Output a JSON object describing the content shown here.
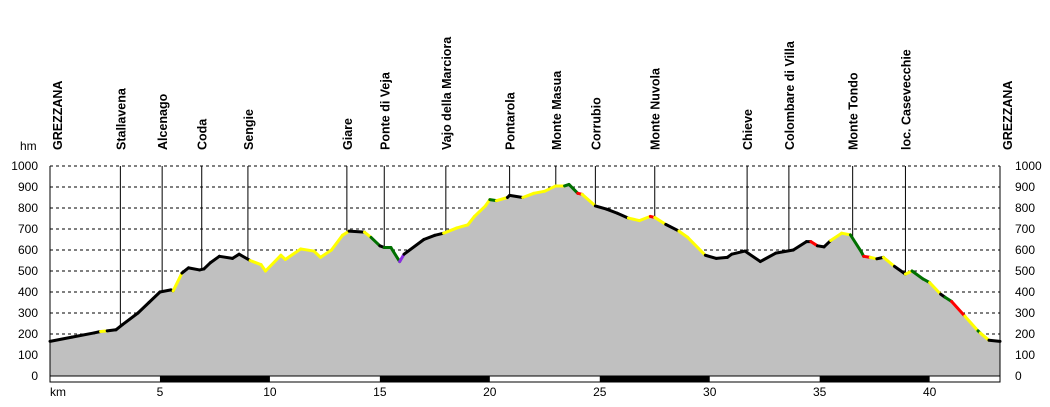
{
  "chart_data": {
    "type": "area",
    "title": "",
    "xlabel": "km",
    "ylabel": "hm",
    "xlim": [
      0,
      43.2
    ],
    "ylim": [
      0,
      1000
    ],
    "xticks": [
      5,
      10,
      15,
      20,
      25,
      30,
      35,
      40
    ],
    "yticks": [
      0,
      100,
      200,
      300,
      400,
      500,
      600,
      700,
      800,
      900,
      1000
    ],
    "grid": true,
    "colors": {
      "k": "#000000",
      "y": "#ffff00",
      "g": "#007000",
      "r": "#ff0000",
      "p": "#8a2be2",
      "fill": "#c0c0c0"
    },
    "waypoints": [
      {
        "name": "GREZZANA",
        "km": 0
      },
      {
        "name": "Stallavena",
        "km": 3.2
      },
      {
        "name": "Alcenago",
        "km": 5.1
      },
      {
        "name": "Coda",
        "km": 6.9
      },
      {
        "name": "Sengie",
        "km": 9.0
      },
      {
        "name": "Giare",
        "km": 13.5
      },
      {
        "name": "Ponte di Veja",
        "km": 15.2
      },
      {
        "name": "Vajo della Marciora",
        "km": 18.0
      },
      {
        "name": "Pontarola",
        "km": 20.9
      },
      {
        "name": "Monte Masua",
        "km": 23.0
      },
      {
        "name": "Corrubio",
        "km": 24.8
      },
      {
        "name": "Monte Nuvola",
        "km": 27.5
      },
      {
        "name": "Chieve",
        "km": 31.7
      },
      {
        "name": "Colombare di Villa",
        "km": 33.6
      },
      {
        "name": "Monte Tondo",
        "km": 36.5
      },
      {
        "name": "loc. Casevecchie",
        "km": 38.9
      },
      {
        "name": "GREZZANA",
        "km": 43.2
      }
    ],
    "profile": [
      [
        0,
        165,
        "k"
      ],
      [
        1,
        185,
        "k"
      ],
      [
        2,
        205,
        "k"
      ],
      [
        2.3,
        212,
        "y"
      ],
      [
        2.6,
        215,
        "k"
      ],
      [
        3,
        220,
        "k"
      ],
      [
        3.3,
        245,
        "k"
      ],
      [
        4,
        300,
        "k"
      ],
      [
        4.5,
        350,
        "k"
      ],
      [
        5,
        400,
        "k"
      ],
      [
        5.5,
        410,
        "k"
      ],
      [
        5.6,
        405,
        "y"
      ],
      [
        6,
        490,
        "k"
      ],
      [
        6.3,
        515,
        "k"
      ],
      [
        6.8,
        505,
        "k"
      ],
      [
        7.0,
        510,
        "k"
      ],
      [
        7.3,
        540,
        "k"
      ],
      [
        7.7,
        570,
        "k"
      ],
      [
        8.3,
        560,
        "k"
      ],
      [
        8.6,
        580,
        "k"
      ],
      [
        9.1,
        550,
        "y"
      ],
      [
        9.6,
        530,
        "y"
      ],
      [
        9.8,
        500,
        "y"
      ],
      [
        10.5,
        575,
        "y"
      ],
      [
        10.7,
        555,
        "y"
      ],
      [
        11.4,
        605,
        "y"
      ],
      [
        12.0,
        595,
        "y"
      ],
      [
        12.3,
        565,
        "y"
      ],
      [
        12.8,
        600,
        "y"
      ],
      [
        13.3,
        670,
        "y"
      ],
      [
        13.6,
        690,
        "k"
      ],
      [
        14.3,
        685,
        "y"
      ],
      [
        14.6,
        660,
        "g"
      ],
      [
        15.0,
        620,
        "k"
      ],
      [
        15.2,
        612,
        "g"
      ],
      [
        15.5,
        612,
        "g"
      ],
      [
        15.9,
        545,
        "p"
      ],
      [
        16.1,
        580,
        "k"
      ],
      [
        17.0,
        650,
        "k"
      ],
      [
        17.5,
        670,
        "k"
      ],
      [
        17.9,
        680,
        "y"
      ],
      [
        18.5,
        705,
        "y"
      ],
      [
        19.0,
        720,
        "y"
      ],
      [
        19.3,
        760,
        "y"
      ],
      [
        19.8,
        810,
        "y"
      ],
      [
        20.0,
        840,
        "g"
      ],
      [
        20.3,
        835,
        "y"
      ],
      [
        20.8,
        850,
        "k"
      ],
      [
        20.9,
        860,
        "k"
      ],
      [
        21.5,
        850,
        "y"
      ],
      [
        22.0,
        870,
        "y"
      ],
      [
        22.5,
        880,
        "y"
      ],
      [
        23.0,
        905,
        "y"
      ],
      [
        23.4,
        905,
        "g"
      ],
      [
        23.6,
        912,
        "g"
      ],
      [
        24.0,
        870,
        "r"
      ],
      [
        24.2,
        865,
        "y"
      ],
      [
        24.8,
        810,
        "k"
      ],
      [
        25.3,
        795,
        "k"
      ],
      [
        25.8,
        775,
        "k"
      ],
      [
        26.3,
        752,
        "y"
      ],
      [
        26.8,
        740,
        "y"
      ],
      [
        27.3,
        760,
        "r"
      ],
      [
        27.5,
        755,
        "y"
      ],
      [
        28.0,
        722,
        "k"
      ],
      [
        28.6,
        690,
        "y"
      ],
      [
        29.0,
        660,
        "y"
      ],
      [
        29.8,
        575,
        "k"
      ],
      [
        30.3,
        560,
        "k"
      ],
      [
        30.8,
        565,
        "k"
      ],
      [
        31.0,
        580,
        "k"
      ],
      [
        31.6,
        595,
        "k"
      ],
      [
        32.3,
        545,
        "k"
      ],
      [
        33.0,
        585,
        "k"
      ],
      [
        33.8,
        600,
        "k"
      ],
      [
        34.4,
        640,
        "k"
      ],
      [
        34.6,
        640,
        "r"
      ],
      [
        34.9,
        620,
        "k"
      ],
      [
        35.2,
        615,
        "k"
      ],
      [
        35.5,
        645,
        "y"
      ],
      [
        36.0,
        680,
        "y"
      ],
      [
        36.4,
        672,
        "g"
      ],
      [
        36.9,
        590,
        "g"
      ],
      [
        37.0,
        570,
        "r"
      ],
      [
        37.3,
        565,
        "y"
      ],
      [
        37.6,
        558,
        "k"
      ],
      [
        37.9,
        565,
        "y"
      ],
      [
        38.4,
        522,
        "k"
      ],
      [
        38.9,
        485,
        "y"
      ],
      [
        39.2,
        500,
        "g"
      ],
      [
        39.7,
        462,
        "g"
      ],
      [
        40.0,
        445,
        "y"
      ],
      [
        40.5,
        390,
        "k"
      ],
      [
        40.7,
        375,
        "g"
      ],
      [
        41.0,
        355,
        "r"
      ],
      [
        41.6,
        285,
        "y"
      ],
      [
        42.2,
        215,
        "g"
      ],
      [
        42.3,
        205,
        "y"
      ],
      [
        42.7,
        170,
        "k"
      ],
      [
        43.2,
        165,
        "k"
      ]
    ]
  }
}
